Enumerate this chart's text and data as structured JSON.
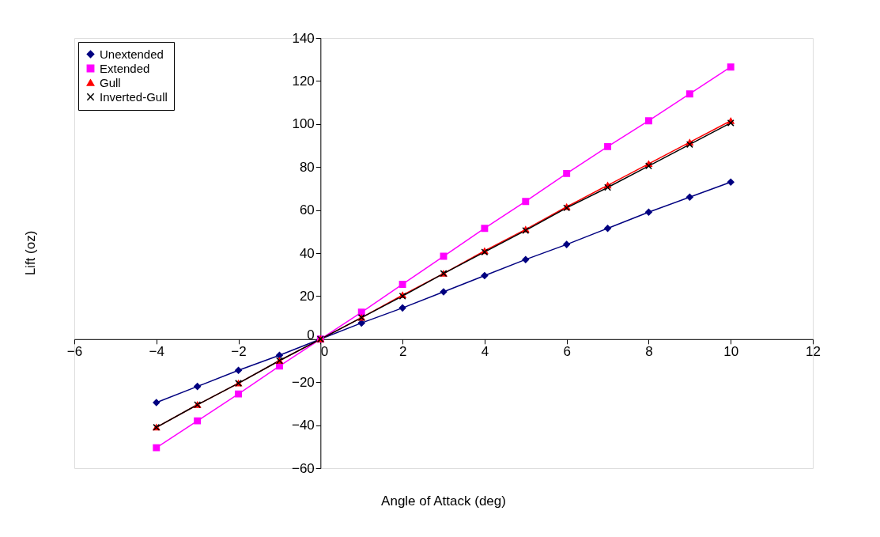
{
  "chart_data": {
    "type": "line",
    "xlabel": "Angle of Attack (deg)",
    "ylabel": "Lift (oz)",
    "x": [
      -4,
      -3,
      -2,
      -1,
      0,
      1,
      2,
      3,
      4,
      5,
      6,
      7,
      8,
      9,
      10
    ],
    "series": [
      {
        "name": "Unextended",
        "color": "#000080",
        "marker": "diamond",
        "values": [
          -29.5,
          -22,
          -14.5,
          -7.5,
          0,
          7.5,
          14.5,
          22,
          29.5,
          37,
          44,
          51.5,
          59,
          66,
          73
        ]
      },
      {
        "name": "Extended",
        "color": "#ff00ff",
        "marker": "square",
        "values": [
          -50.5,
          -38,
          -25.5,
          -12.5,
          0,
          12.5,
          25.5,
          38.5,
          51.5,
          64,
          77,
          89.5,
          101.5,
          114,
          126.5
        ]
      },
      {
        "name": "Gull",
        "color": "#ff0000",
        "marker": "triangle",
        "values": [
          -41,
          -30.5,
          -20.5,
          -10,
          0,
          10,
          20.5,
          30.5,
          41,
          51,
          61.5,
          71.5,
          81.5,
          91.5,
          101.5
        ]
      },
      {
        "name": "Inverted-Gull",
        "color": "#000000",
        "marker": "cross",
        "values": [
          -41,
          -30.5,
          -20.5,
          -10,
          0,
          10,
          20,
          30.5,
          40.5,
          50.5,
          61,
          70.5,
          80.5,
          90.5,
          100.5
        ]
      }
    ],
    "xlim": [
      -6,
      12
    ],
    "xticks": [
      -6,
      -4,
      -2,
      0,
      2,
      4,
      6,
      8,
      10,
      12
    ],
    "ylim": [
      -60,
      140
    ],
    "yticks": [
      -60,
      -40,
      -20,
      0,
      20,
      40,
      60,
      80,
      100,
      120,
      140
    ],
    "grid": false,
    "legend": "top left",
    "line_style": "solid"
  }
}
